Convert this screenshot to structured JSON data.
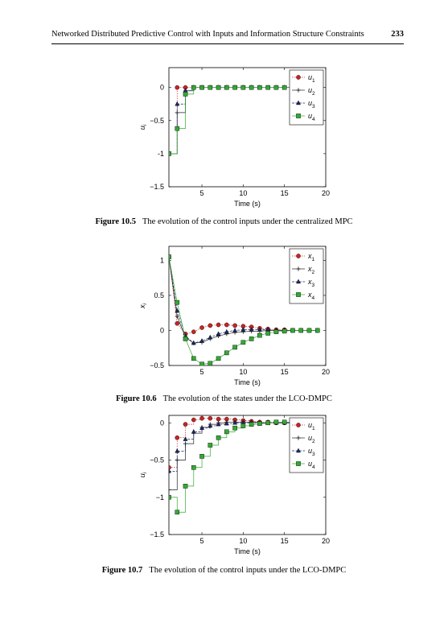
{
  "header": {
    "title": "Networked Distributed Predictive Control with Inputs and Information Structure Constraints",
    "page": "233"
  },
  "figures": [
    {
      "label": "Figure 10.5",
      "caption": "The evolution of the control inputs under the centralized MPC"
    },
    {
      "label": "Figure 10.6",
      "caption": "The evolution of the states under the LCO-DMPC"
    },
    {
      "label": "Figure 10.7",
      "caption": "The evolution of the control inputs under the LCO-DMPC"
    }
  ],
  "chart_data": [
    {
      "type": "line",
      "step": true,
      "xlabel": "Time (s)",
      "ylabel": "u_i",
      "xlim": [
        1,
        20
      ],
      "ylim": [
        -1.5,
        0.3
      ],
      "xticks": [
        5,
        10,
        15,
        20
      ],
      "yticks": [
        0,
        -0.5,
        -1,
        -1.5
      ],
      "ytick_labels": [
        "0",
        "−0.5",
        "-1",
        "−1.5"
      ],
      "legend_loc": "upper right",
      "series": [
        {
          "name": "u1",
          "marker": "circle",
          "color": "#cc2222",
          "values": [
            -1.0,
            0.0,
            0.0,
            0.0,
            0.0,
            0.0,
            0.0,
            0.0,
            0.0,
            0.0,
            0.0,
            0.0,
            0.0,
            0.0,
            0.0,
            0.0,
            0.0,
            0.0,
            0.0
          ]
        },
        {
          "name": "u2",
          "marker": "plus",
          "color": "#222222",
          "values": [
            -1.0,
            -0.38,
            -0.05,
            0.0,
            0.0,
            0.0,
            0.0,
            0.0,
            0.0,
            0.0,
            0.0,
            0.0,
            0.0,
            0.0,
            0.0,
            0.0,
            0.0,
            0.0,
            0.0
          ]
        },
        {
          "name": "u3",
          "marker": "triangle",
          "color": "#1a2a66",
          "values": [
            -1.0,
            -0.25,
            -0.05,
            0.0,
            0.0,
            0.0,
            0.0,
            0.0,
            0.0,
            0.0,
            0.0,
            0.0,
            0.0,
            0.0,
            0.0,
            0.0,
            0.0,
            0.0,
            0.0
          ]
        },
        {
          "name": "u4",
          "marker": "square",
          "color": "#33aa33",
          "values": [
            -1.0,
            -0.62,
            -0.1,
            0.0,
            0.0,
            0.0,
            0.0,
            0.0,
            0.0,
            0.0,
            0.0,
            0.0,
            0.0,
            0.0,
            0.0,
            0.0,
            0.0,
            0.0,
            0.0
          ]
        }
      ]
    },
    {
      "type": "line",
      "step": false,
      "xlabel": "Time (s)",
      "ylabel": "x_i",
      "xlim": [
        1,
        20
      ],
      "ylim": [
        -0.5,
        1.2
      ],
      "xticks": [
        5,
        10,
        15,
        20
      ],
      "yticks": [
        1,
        0.5,
        0,
        -0.5
      ],
      "ytick_labels": [
        "1",
        "0.5",
        "0",
        "−0.5"
      ],
      "legend_loc": "upper right",
      "series": [
        {
          "name": "x1",
          "marker": "circle",
          "color": "#cc2222",
          "values": [
            1.05,
            0.1,
            -0.05,
            -0.02,
            0.04,
            0.07,
            0.08,
            0.08,
            0.07,
            0.06,
            0.05,
            0.03,
            0.02,
            0.01,
            0.01,
            0.0,
            0.0,
            0.0,
            0.0
          ]
        },
        {
          "name": "x2",
          "marker": "plus",
          "color": "#222222",
          "values": [
            1.05,
            0.2,
            -0.1,
            -0.18,
            -0.17,
            -0.12,
            -0.08,
            -0.05,
            -0.03,
            -0.02,
            -0.01,
            -0.01,
            0.0,
            0.0,
            0.0,
            0.0,
            0.0,
            0.0,
            0.0
          ]
        },
        {
          "name": "x3",
          "marker": "triangle",
          "color": "#1a2a66",
          "values": [
            1.05,
            0.28,
            -0.08,
            -0.18,
            -0.15,
            -0.1,
            -0.05,
            -0.02,
            0.0,
            0.01,
            0.01,
            0.01,
            0.01,
            0.0,
            0.0,
            0.0,
            0.0,
            0.0,
            0.0
          ]
        },
        {
          "name": "x4",
          "marker": "square",
          "color": "#33aa33",
          "values": [
            1.05,
            0.4,
            -0.12,
            -0.4,
            -0.48,
            -0.47,
            -0.4,
            -0.32,
            -0.24,
            -0.17,
            -0.12,
            -0.07,
            -0.04,
            -0.02,
            -0.01,
            0.0,
            0.0,
            0.0,
            0.0
          ]
        }
      ]
    },
    {
      "type": "line",
      "step": true,
      "xlabel": "Time (s)",
      "ylabel": "u_i",
      "xlim": [
        1,
        20
      ],
      "ylim": [
        -1.5,
        0.1
      ],
      "xticks": [
        5,
        10,
        15,
        20
      ],
      "yticks": [
        0,
        -0.5,
        -1,
        -1.5
      ],
      "ytick_labels": [
        "0",
        "−0.5",
        "−1",
        "−1.5"
      ],
      "legend_loc": "upper right",
      "series": [
        {
          "name": "u1",
          "marker": "circle",
          "color": "#cc2222",
          "values": [
            -0.6,
            -0.2,
            -0.02,
            0.04,
            0.06,
            0.06,
            0.05,
            0.05,
            0.04,
            0.03,
            0.02,
            0.01,
            0.01,
            0.0,
            0.0,
            0.0,
            0.0,
            0.0,
            0.0
          ]
        },
        {
          "name": "u2",
          "marker": "plus",
          "color": "#222222",
          "values": [
            -0.9,
            -0.5,
            -0.28,
            -0.14,
            -0.06,
            -0.02,
            0.0,
            0.01,
            0.01,
            0.01,
            0.01,
            0.0,
            0.0,
            0.0,
            0.0,
            0.0,
            0.0,
            0.0,
            0.0
          ]
        },
        {
          "name": "u3",
          "marker": "triangle",
          "color": "#1a2a66",
          "values": [
            -0.65,
            -0.38,
            -0.22,
            -0.12,
            -0.07,
            -0.04,
            -0.02,
            -0.01,
            0.0,
            0.0,
            0.0,
            0.0,
            0.0,
            0.0,
            0.0,
            0.0,
            0.0,
            0.0,
            0.0
          ]
        },
        {
          "name": "u4",
          "marker": "square",
          "color": "#33aa33",
          "values": [
            -1.0,
            -1.2,
            -0.85,
            -0.6,
            -0.45,
            -0.3,
            -0.2,
            -0.12,
            -0.07,
            -0.04,
            -0.02,
            -0.01,
            0.0,
            0.01,
            0.01,
            0.02,
            0.02,
            0.02,
            0.01
          ]
        }
      ]
    }
  ]
}
